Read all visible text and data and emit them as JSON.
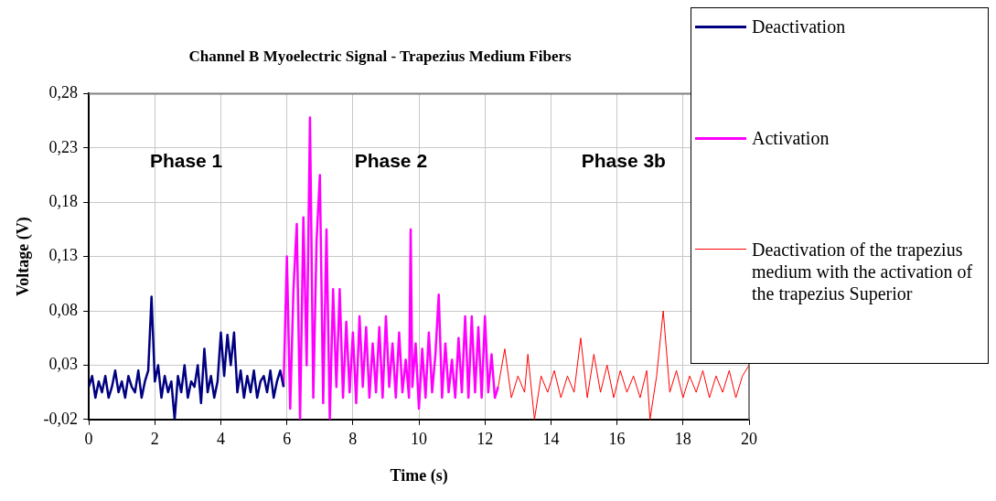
{
  "chart_data": {
    "type": "line",
    "title": "Channel B Myoelectric Signal - Trapezius Medium Fibers",
    "xlabel": "Time (s)",
    "ylabel": "Voltage (V)",
    "xlim": [
      0,
      20
    ],
    "xticks": [
      0,
      2,
      4,
      6,
      8,
      10,
      12,
      14,
      16,
      18,
      20
    ],
    "ylim": [
      -0.02,
      0.28
    ],
    "yticks": [
      {
        "value": -0.02,
        "label": "-0,02"
      },
      {
        "value": 0.03,
        "label": "0,03"
      },
      {
        "value": 0.08,
        "label": "0,08"
      },
      {
        "value": 0.13,
        "label": "0,13"
      },
      {
        "value": 0.18,
        "label": "0,18"
      },
      {
        "value": 0.23,
        "label": "0,23"
      },
      {
        "value": 0.28,
        "label": "0,28"
      }
    ],
    "grid": true,
    "legend": "right",
    "marker": "none",
    "line_style": "solid",
    "annotations": [
      "Phase 1",
      "Phase 2",
      "Phase 3b"
    ],
    "series": [
      {
        "name": "Deactivation",
        "color": "#000080",
        "x": [
          0,
          0.1,
          0.2,
          0.3,
          0.4,
          0.5,
          0.6,
          0.7,
          0.8,
          0.9,
          1.0,
          1.1,
          1.2,
          1.3,
          1.4,
          1.5,
          1.6,
          1.7,
          1.8,
          1.9,
          2.0,
          2.1,
          2.2,
          2.3,
          2.4,
          2.5,
          2.6,
          2.7,
          2.8,
          2.9,
          3.0,
          3.1,
          3.2,
          3.3,
          3.4,
          3.5,
          3.6,
          3.7,
          3.8,
          3.9,
          4.0,
          4.1,
          4.2,
          4.3,
          4.4,
          4.5,
          4.6,
          4.7,
          4.8,
          4.9,
          5.0,
          5.1,
          5.2,
          5.3,
          5.4,
          5.5,
          5.6,
          5.7,
          5.8,
          5.9
        ],
        "values": [
          0.01,
          0.02,
          0.0,
          0.015,
          0.005,
          0.02,
          0.0,
          0.01,
          0.025,
          0.005,
          0.015,
          0.0,
          0.02,
          0.01,
          0.005,
          0.025,
          0.0,
          0.015,
          0.025,
          0.093,
          0.015,
          0.03,
          0.0,
          0.02,
          0.005,
          0.015,
          -0.02,
          0.02,
          0.005,
          0.03,
          0.0,
          0.015,
          0.01,
          0.03,
          -0.005,
          0.045,
          0.005,
          0.02,
          0.0,
          0.015,
          0.06,
          0.02,
          0.058,
          0.03,
          0.06,
          0.005,
          0.025,
          0.0,
          0.02,
          0.005,
          0.025,
          0.0,
          0.015,
          0.02,
          0.005,
          0.025,
          0.0,
          0.015,
          0.025,
          0.01
        ]
      },
      {
        "name": "Activation",
        "color": "#ff00ff",
        "x": [
          5.9,
          6.0,
          6.1,
          6.2,
          6.3,
          6.4,
          6.5,
          6.6,
          6.7,
          6.8,
          6.9,
          7.0,
          7.1,
          7.2,
          7.3,
          7.4,
          7.5,
          7.6,
          7.7,
          7.8,
          7.9,
          8.0,
          8.1,
          8.2,
          8.3,
          8.4,
          8.5,
          8.6,
          8.7,
          8.8,
          8.9,
          9.0,
          9.1,
          9.2,
          9.3,
          9.4,
          9.5,
          9.6,
          9.7,
          9.75,
          9.8,
          9.9,
          10.0,
          10.1,
          10.2,
          10.3,
          10.4,
          10.5,
          10.6,
          10.7,
          10.8,
          10.9,
          11.0,
          11.1,
          11.2,
          11.3,
          11.4,
          11.5,
          11.6,
          11.7,
          11.8,
          11.9,
          12.0,
          12.1,
          12.2,
          12.3,
          12.4
        ],
        "values": [
          0.01,
          0.13,
          -0.01,
          0.1,
          0.16,
          -0.02,
          0.166,
          0.03,
          0.258,
          0.0,
          0.145,
          0.205,
          -0.005,
          0.155,
          -0.02,
          0.1,
          0.01,
          0.1,
          0.0,
          0.07,
          0.005,
          0.06,
          -0.005,
          0.075,
          0.01,
          0.065,
          0.0,
          0.05,
          0.005,
          0.065,
          0.0,
          0.075,
          0.01,
          0.05,
          0.0,
          0.06,
          0.005,
          0.035,
          0.0,
          0.155,
          0.01,
          0.05,
          -0.01,
          0.045,
          0.0,
          0.06,
          0.005,
          0.04,
          0.095,
          0.0,
          0.05,
          0.005,
          0.035,
          0.0,
          0.055,
          0.005,
          0.075,
          0.0,
          0.075,
          0.005,
          0.065,
          0.0,
          0.075,
          0.005,
          0.04,
          0.0,
          0.01
        ]
      },
      {
        "name": "Deactivation of the trapezius medium with the activation of the trapezius Superior",
        "color": "#ff0000",
        "x": [
          12.4,
          12.6,
          12.8,
          13.0,
          13.2,
          13.3,
          13.5,
          13.7,
          13.9,
          14.1,
          14.3,
          14.5,
          14.7,
          14.9,
          15.1,
          15.3,
          15.5,
          15.7,
          15.9,
          16.1,
          16.3,
          16.5,
          16.7,
          16.9,
          17.0,
          17.2,
          17.4,
          17.6,
          17.8,
          18.0,
          18.2,
          18.4,
          18.6,
          18.8,
          19.0,
          19.2,
          19.4,
          19.6,
          19.8,
          20.0
        ],
        "values": [
          0.01,
          0.045,
          0.0,
          0.02,
          0.005,
          0.04,
          -0.02,
          0.02,
          0.005,
          0.025,
          0.0,
          0.02,
          0.005,
          0.055,
          0.0,
          0.04,
          0.005,
          0.03,
          0.0,
          0.025,
          0.005,
          0.02,
          0.0,
          0.025,
          -0.02,
          0.02,
          0.08,
          0.005,
          0.025,
          0.0,
          0.02,
          0.005,
          0.025,
          0.0,
          0.02,
          0.005,
          0.025,
          0.0,
          0.02,
          0.03
        ]
      }
    ]
  }
}
